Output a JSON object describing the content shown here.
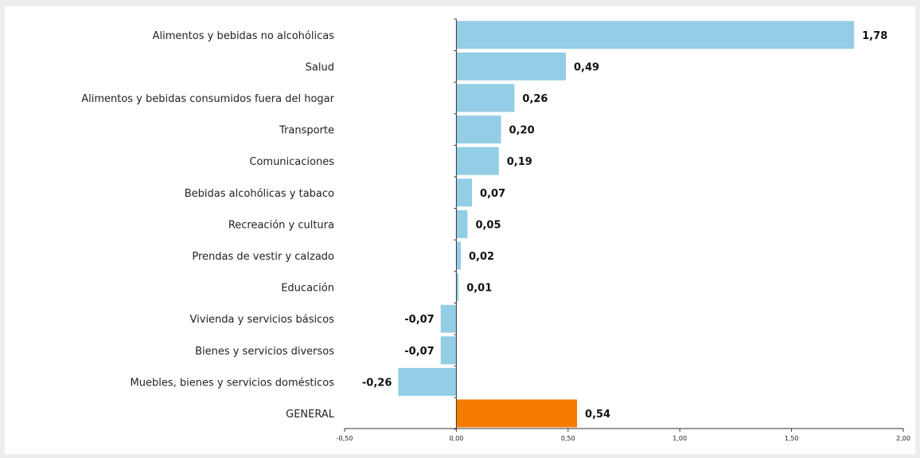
{
  "chart_data": {
    "type": "bar",
    "orientation": "horizontal",
    "categories": [
      "Alimentos y bebidas no alcohólicas",
      "Salud",
      "Alimentos y bebidas consumidos fuera del hogar",
      "Transporte",
      "Comunicaciones",
      "Bebidas alcohólicas y tabaco",
      "Recreación y cultura",
      "Prendas de vestir y calzado",
      "Educación",
      "Vivienda y servicios básicos",
      "Bienes y servicios diversos",
      "Muebles, bienes y servicios domésticos",
      "GENERAL"
    ],
    "values": [
      1.78,
      0.49,
      0.26,
      0.2,
      0.19,
      0.07,
      0.05,
      0.02,
      0.01,
      -0.07,
      -0.07,
      -0.26,
      0.54
    ],
    "value_labels": [
      "1,78",
      "0,49",
      "0,26",
      "0,20",
      "0,19",
      "0,07",
      "0,05",
      "0,02",
      "0,01",
      "-0,07",
      "-0,07",
      "-0,26",
      "0,54"
    ],
    "highlight_category": "GENERAL",
    "xlim": [
      -0.5,
      2.0
    ],
    "x_ticks": [
      -0.5,
      0,
      0.5,
      1.0,
      1.5,
      2.0
    ],
    "x_tick_labels": [
      "-0,50",
      "0,00",
      "0,50",
      "1,00",
      "1,50",
      "2,00"
    ],
    "title": "",
    "xlabel": "",
    "ylabel": "",
    "grid": false,
    "colors": {
      "bar": "#93cde6",
      "highlight": "#f57c00",
      "axis": "#333333"
    }
  }
}
